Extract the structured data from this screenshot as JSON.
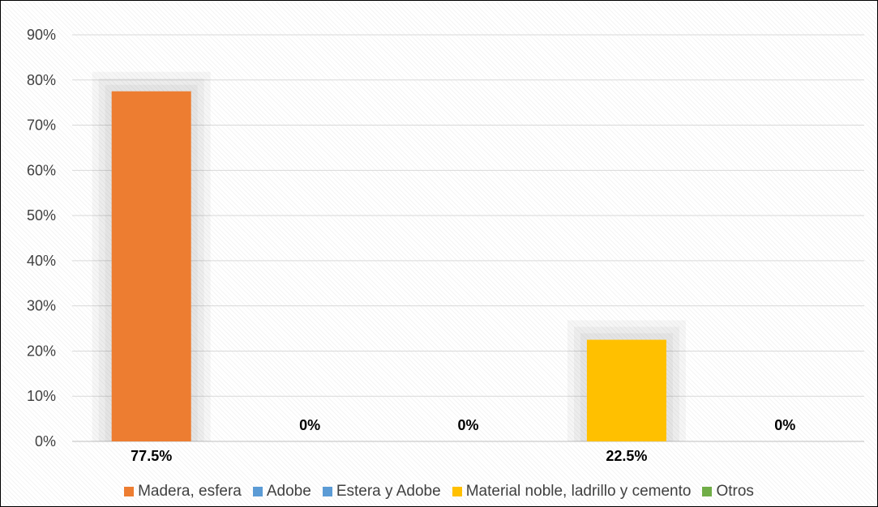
{
  "chart_data": {
    "type": "bar",
    "categories": [
      "Madera, esfera",
      "Adobe",
      "Estera y Adobe",
      "Material noble, ladrillo y cemento",
      "Otros"
    ],
    "values": [
      77.5,
      0,
      0,
      22.5,
      0
    ],
    "data_labels": [
      "77.5%",
      "0%",
      "0%",
      "22.5%",
      "0%"
    ],
    "colors": [
      "#ED7D31",
      "#5B9BD5",
      "#5B9BD5",
      "#FFC000",
      "#70AD47"
    ],
    "ylim": [
      0,
      90
    ],
    "yticks": [
      0,
      10,
      20,
      30,
      40,
      50,
      60,
      70,
      80,
      90
    ],
    "ytick_labels": [
      "0%",
      "10%",
      "20%",
      "30%",
      "40%",
      "50%",
      "60%",
      "70%",
      "80%",
      "90%"
    ],
    "grid": true,
    "legend_position": "bottom"
  }
}
